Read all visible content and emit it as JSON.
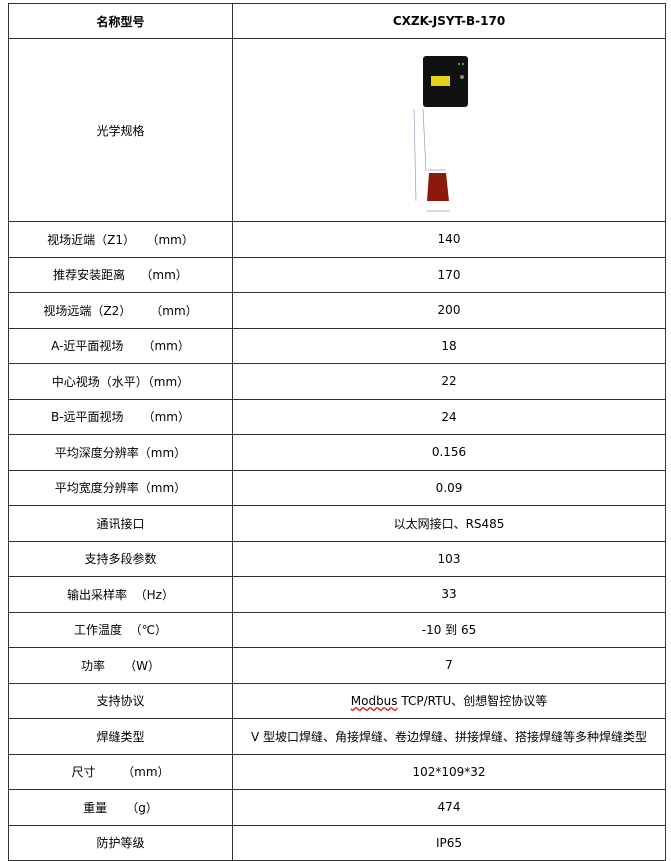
{
  "header": {
    "label": "名称型号",
    "value": "CXZK-JSYT-B-170"
  },
  "image_row": {
    "label": "光学规格",
    "image": "sensor-optical-diagram"
  },
  "rows": [
    {
      "label": "视场近端（Z1）   （mm）",
      "value": "140"
    },
    {
      "label": "推荐安装距离    （mm）",
      "value": "170"
    },
    {
      "label": "视场远端（Z2）     （mm）",
      "value": "200"
    },
    {
      "label": "A-近平面视场     （mm）",
      "value": "18"
    },
    {
      "label": "中心视场（水平）（mm）",
      "value": "22"
    },
    {
      "label": "B-远平面视场     （mm）",
      "value": "24"
    },
    {
      "label": "平均深度分辨率（mm）",
      "value": "0.156"
    },
    {
      "label": "平均宽度分辨率（mm）",
      "value": "0.09"
    },
    {
      "label": "通讯接口",
      "value": "以太网接口、RS485"
    },
    {
      "label": "支持多段参数",
      "value": "103"
    },
    {
      "label": "输出采样率  （Hz）",
      "value": "33"
    },
    {
      "label": "工作温度  （℃）",
      "value": "-10 到 65"
    },
    {
      "label": "功率     （W）",
      "value": "7"
    },
    {
      "label": "支持协议",
      "value_a": "Modbus",
      "value": " TCP/RTU、创想智控协议等"
    },
    {
      "label": "焊缝类型",
      "value": "V 型坡口焊缝、角接焊缝、卷边焊缝、拼接焊缝、搭接焊缝等多种焊缝类型"
    },
    {
      "label": "尺寸       （mm）",
      "value": "102*109*32"
    },
    {
      "label": "重量     （g）",
      "value": "474"
    },
    {
      "label": "防护等级",
      "value": "IP65"
    }
  ]
}
